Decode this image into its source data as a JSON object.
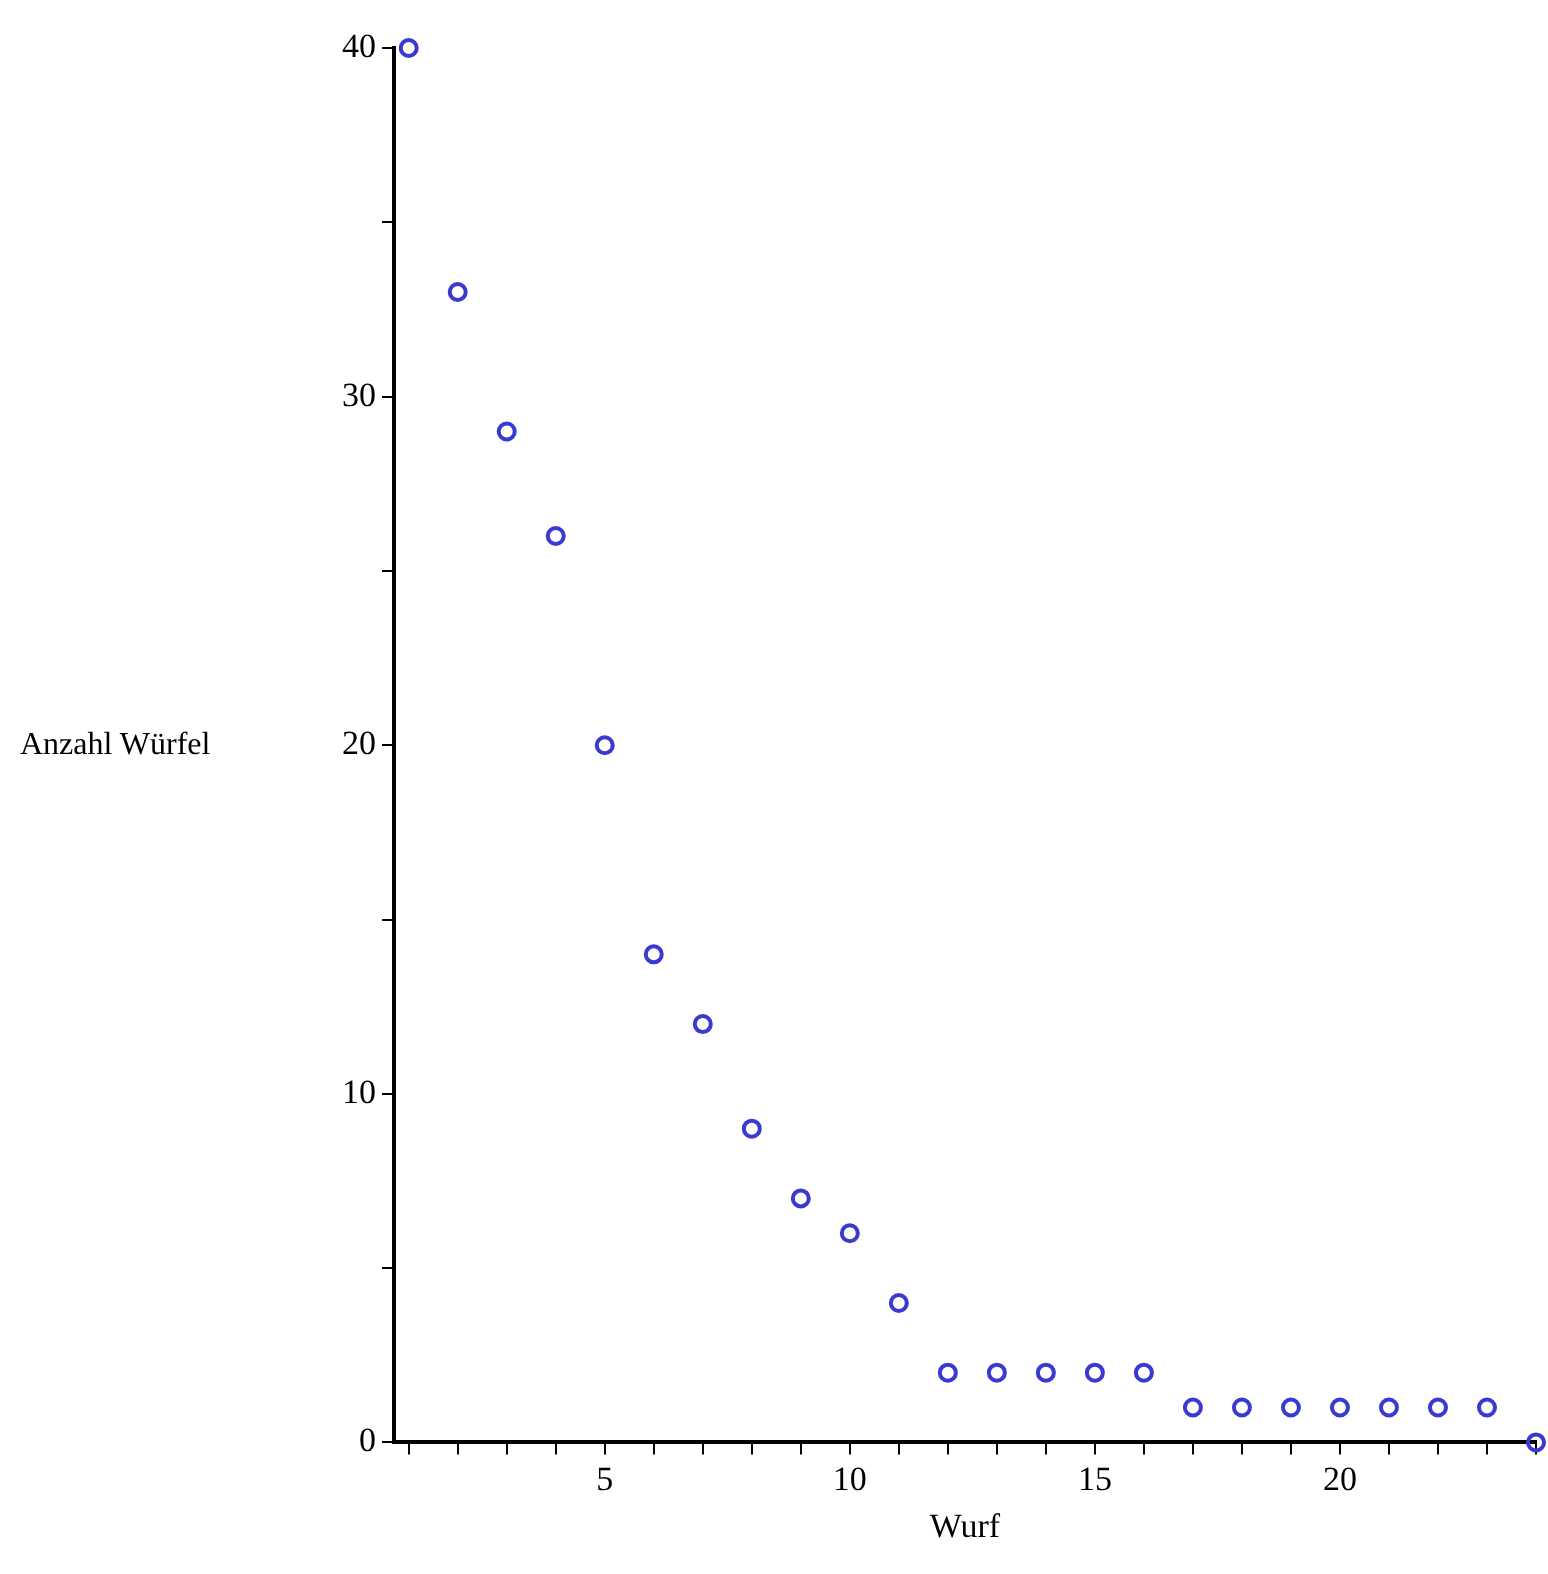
{
  "chart_data": {
    "type": "scatter",
    "xlabel": "Wurf",
    "ylabel": "Anzahl Würfel",
    "x": [
      1,
      2,
      3,
      4,
      5,
      6,
      7,
      8,
      9,
      10,
      11,
      12,
      13,
      14,
      15,
      16,
      17,
      18,
      19,
      20,
      21,
      22,
      23,
      24
    ],
    "series": [
      {
        "color": "#3a3ad0",
        "values": [
          40,
          33,
          29,
          26,
          20,
          14,
          12,
          9,
          7,
          6,
          4,
          2,
          2,
          2,
          2,
          2,
          1,
          1,
          1,
          1,
          1,
          1,
          1,
          0
        ]
      }
    ],
    "xlim": [
      0.7,
      24
    ],
    "ylim": [
      0,
      40
    ],
    "xticks": [
      {
        "value": 1,
        "label": null
      },
      {
        "value": 2,
        "label": null
      },
      {
        "value": 3,
        "label": null
      },
      {
        "value": 4,
        "label": null
      },
      5,
      {
        "value": 6,
        "label": null
      },
      {
        "value": 7,
        "label": null
      },
      {
        "value": 8,
        "label": null
      },
      {
        "value": 9,
        "label": null
      },
      10,
      {
        "value": 11,
        "label": null
      },
      {
        "value": 12,
        "label": null
      },
      {
        "value": 13,
        "label": null
      },
      {
        "value": 14,
        "label": null
      },
      15,
      {
        "value": 16,
        "label": null
      },
      {
        "value": 17,
        "label": null
      },
      {
        "value": 18,
        "label": null
      },
      {
        "value": 19,
        "label": null
      },
      20,
      {
        "value": 21,
        "label": null
      },
      {
        "value": 22,
        "label": null
      },
      {
        "value": 23,
        "label": null
      },
      {
        "value": 24,
        "label": null
      }
    ],
    "yticks": [
      0,
      {
        "value": 5,
        "label": null
      },
      10,
      {
        "value": 15,
        "label": null
      },
      20,
      {
        "value": 25,
        "label": null
      },
      30,
      {
        "value": 35,
        "label": null
      },
      40
    ],
    "grid": false,
    "legend": false,
    "marker": "circle"
  }
}
